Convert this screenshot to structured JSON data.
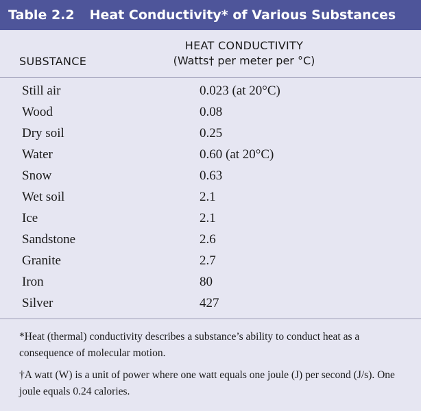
{
  "table": {
    "number": "Table 2.2",
    "title": "Heat Conductivity* of Various Substances",
    "headers": {
      "substance": "SUBSTANCE",
      "conductivity_line1": "HEAT CONDUCTIVITY",
      "conductivity_line2": "(Watts† per meter per °C)"
    },
    "rows": [
      {
        "substance": "Still air",
        "value": "0.023 (at 20°C)"
      },
      {
        "substance": "Wood",
        "value": "0.08"
      },
      {
        "substance": "Dry soil",
        "value": "0.25"
      },
      {
        "substance": "Water",
        "value": "0.60 (at 20°C)"
      },
      {
        "substance": "Snow",
        "value": "0.63"
      },
      {
        "substance": "Wet soil",
        "value": "2.1"
      },
      {
        "substance": "Ice",
        "value": "2.1"
      },
      {
        "substance": "Sandstone",
        "value": "2.6"
      },
      {
        "substance": "Granite",
        "value": "2.7"
      },
      {
        "substance": "Iron",
        "value": "80"
      },
      {
        "substance": "Silver",
        "value": "427"
      }
    ],
    "footnotes": [
      "*Heat (thermal) conductivity describes a substance’s ability to conduct heat as a consequence of molecular motion.",
      "†A watt (W) is a unit of power where one watt equals one joule (J) per second (J/s). One joule equals 0.24 calories."
    ],
    "colors": {
      "title_bar": "#4e559a",
      "background": "#e6e6f2"
    }
  }
}
